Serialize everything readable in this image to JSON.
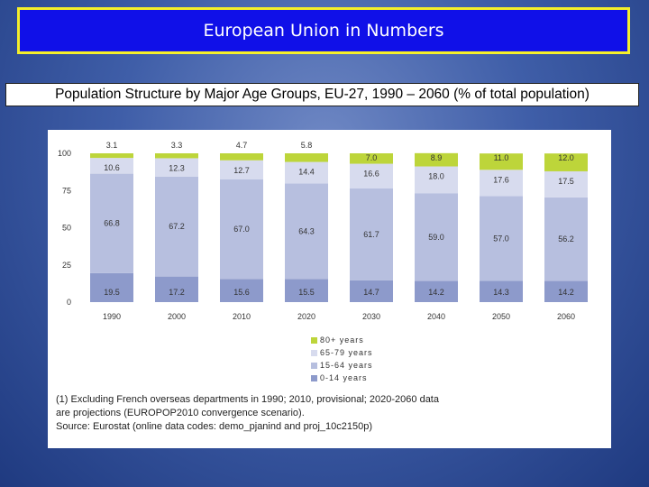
{
  "header": {
    "title": "European Union in Numbers"
  },
  "subtitle": "Population Structure by Major Age Groups, EU-27, 1990 – 2060 (% of total population)",
  "colors": {
    "0-14 years": "#8d9acb",
    "15-64 years": "#b7bfdf",
    "65-79 years": "#d7dbee",
    "80+ years": "#bdd53a"
  },
  "footnote": [
    "(1) Excluding French overseas departments in 1990; 2010, provisional; 2020-2060 data",
    "are projections (EUROPOP2010 convergence scenario).",
    "Source: Eurostat (online data codes: demo_pjanind and proj_10c2150p)"
  ],
  "chart_data": {
    "type": "bar",
    "stacked": true,
    "categories": [
      "1990",
      "2000",
      "2010",
      "2020",
      "2030",
      "2040",
      "2050",
      "2060"
    ],
    "series": [
      {
        "name": "0-14 years",
        "values": [
          19.5,
          17.2,
          15.6,
          15.5,
          14.7,
          14.2,
          14.3,
          14.2
        ],
        "labels": [
          "19.5",
          "17.2",
          "15.6",
          "15.5",
          "14.7",
          "14.2",
          "14.3",
          "14.2"
        ]
      },
      {
        "name": "15-64 years",
        "values": [
          66.8,
          67.2,
          67.0,
          64.3,
          61.7,
          59.0,
          57.0,
          56.2
        ],
        "labels": [
          "66.8",
          "67.2",
          "67.0",
          "64.3",
          "61.7",
          "59.0",
          "57.0",
          "56.2"
        ]
      },
      {
        "name": "65-79 years",
        "values": [
          10.6,
          12.3,
          12.7,
          14.4,
          16.6,
          18.0,
          17.6,
          17.5
        ],
        "labels": [
          "10.6",
          "12.3",
          "12.7",
          "14.4",
          "16.6",
          "18.0",
          "17.6",
          "17.5"
        ]
      },
      {
        "name": "80+ years",
        "values": [
          3.1,
          3.3,
          4.7,
          5.8,
          7.0,
          8.9,
          11.0,
          12.0
        ],
        "labels": [
          "3.1",
          "3.3",
          "4.7",
          "5.8",
          "7.0",
          "8.9",
          "11.0",
          "12.0"
        ]
      }
    ],
    "y_ticks": [
      "0",
      "25",
      "50",
      "75",
      "100"
    ],
    "ylim": [
      0,
      100
    ],
    "legend_order": [
      "80+ years",
      "65-79 years",
      "15-64 years",
      "0-14 years"
    ],
    "legend_position": "bottom-center",
    "grid": false
  }
}
